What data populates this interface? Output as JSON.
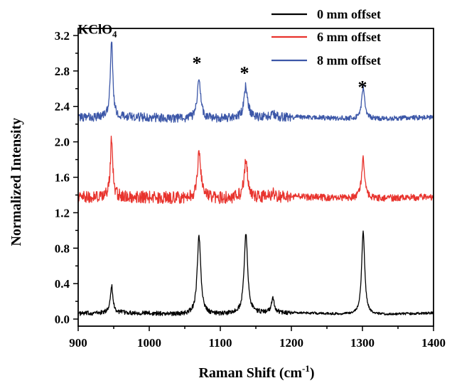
{
  "chart_data": {
    "type": "line",
    "xlabel": "Raman Shift (cm",
    "xlabel_sup": "-1",
    "xlabel_close": ")",
    "ylabel": "Normalized Intensity",
    "xlim": [
      900,
      1400
    ],
    "ylim": [
      -0.08,
      3.28
    ],
    "x_ticks": [
      "900",
      "1000",
      "1100",
      "1200",
      "1300",
      "1400"
    ],
    "y_ticks": [
      "0.0",
      "0.4",
      "0.8",
      "1.2",
      "1.6",
      "2.0",
      "2.4",
      "2.8",
      "3.2"
    ],
    "legend_position": "top-right",
    "series": [
      {
        "name": "0 mm offset",
        "color": "#000000",
        "baseline": 0.06,
        "noise": 0.025,
        "peaks": [
          {
            "x": 947,
            "height": 0.31,
            "width": 2.2
          },
          {
            "x": 1070,
            "height": 0.88,
            "width": 3.0
          },
          {
            "x": 1136,
            "height": 0.89,
            "width": 3.0
          },
          {
            "x": 1174,
            "height": 0.16,
            "width": 2.5
          },
          {
            "x": 1301,
            "height": 0.94,
            "width": 2.6
          }
        ]
      },
      {
        "name": "6 mm offset",
        "color": "#e8332d",
        "baseline": 1.37,
        "noise": 0.07,
        "peaks": [
          {
            "x": 947,
            "height": 0.67,
            "width": 2.0
          },
          {
            "x": 1070,
            "height": 0.52,
            "width": 3.0
          },
          {
            "x": 1136,
            "height": 0.42,
            "width": 3.0
          },
          {
            "x": 1174,
            "height": 0.06,
            "width": 2.5
          },
          {
            "x": 1301,
            "height": 0.46,
            "width": 2.6
          }
        ]
      },
      {
        "name": "8 mm offset",
        "color": "#3c57a8",
        "baseline": 2.27,
        "noise": 0.05,
        "peaks": [
          {
            "x": 947,
            "height": 0.88,
            "width": 2.0
          },
          {
            "x": 1070,
            "height": 0.44,
            "width": 3.0
          },
          {
            "x": 1136,
            "height": 0.36,
            "width": 3.0
          },
          {
            "x": 1174,
            "height": 0.04,
            "width": 2.5
          },
          {
            "x": 1301,
            "height": 0.35,
            "width": 2.6
          }
        ]
      }
    ],
    "annotations": {
      "compound": "KClO",
      "compound_sub": "4",
      "star": "*",
      "star_positions": [
        {
          "x": 1067,
          "y": 2.93
        },
        {
          "x": 1134,
          "y": 2.82
        },
        {
          "x": 1300,
          "y": 2.66
        }
      ],
      "compound_position": {
        "x": 947,
        "y": 3.22
      }
    }
  }
}
